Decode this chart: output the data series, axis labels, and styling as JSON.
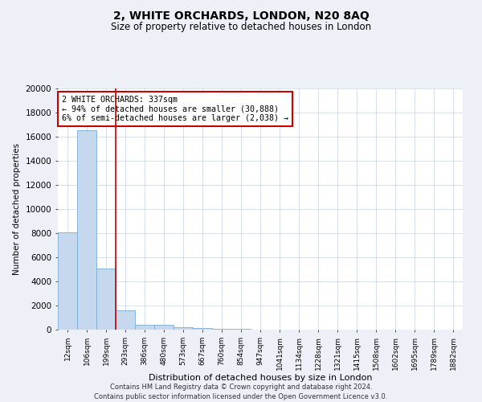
{
  "title": "2, WHITE ORCHARDS, LONDON, N20 8AQ",
  "subtitle": "Size of property relative to detached houses in London",
  "xlabel": "Distribution of detached houses by size in London",
  "ylabel": "Number of detached properties",
  "categories": [
    "12sqm",
    "106sqm",
    "199sqm",
    "293sqm",
    "386sqm",
    "480sqm",
    "573sqm",
    "667sqm",
    "760sqm",
    "854sqm",
    "947sqm",
    "1041sqm",
    "1134sqm",
    "1228sqm",
    "1321sqm",
    "1415sqm",
    "1508sqm",
    "1602sqm",
    "1695sqm",
    "1789sqm",
    "1882sqm"
  ],
  "values": [
    8050,
    16500,
    5100,
    1600,
    430,
    390,
    200,
    150,
    100,
    70,
    0,
    0,
    0,
    0,
    0,
    0,
    0,
    0,
    0,
    0,
    0
  ],
  "bar_color": "#c5d8ee",
  "bar_edge_color": "#7aadd4",
  "vline_position": 2.5,
  "vline_color": "#cc0000",
  "annotation_text": "2 WHITE ORCHARDS: 337sqm\n← 94% of detached houses are smaller (30,888)\n6% of semi-detached houses are larger (2,038) →",
  "annotation_box_color": "#ffffff",
  "annotation_box_edge_color": "#cc0000",
  "ylim": [
    0,
    20000
  ],
  "yticks": [
    0,
    2000,
    4000,
    6000,
    8000,
    10000,
    12000,
    14000,
    16000,
    18000,
    20000
  ],
  "footer_line1": "Contains HM Land Registry data © Crown copyright and database right 2024.",
  "footer_line2": "Contains public sector information licensed under the Open Government Licence v3.0.",
  "background_color": "#edf1f7",
  "plot_bg_color": "#ffffff",
  "grid_color": "#c8d4e4"
}
